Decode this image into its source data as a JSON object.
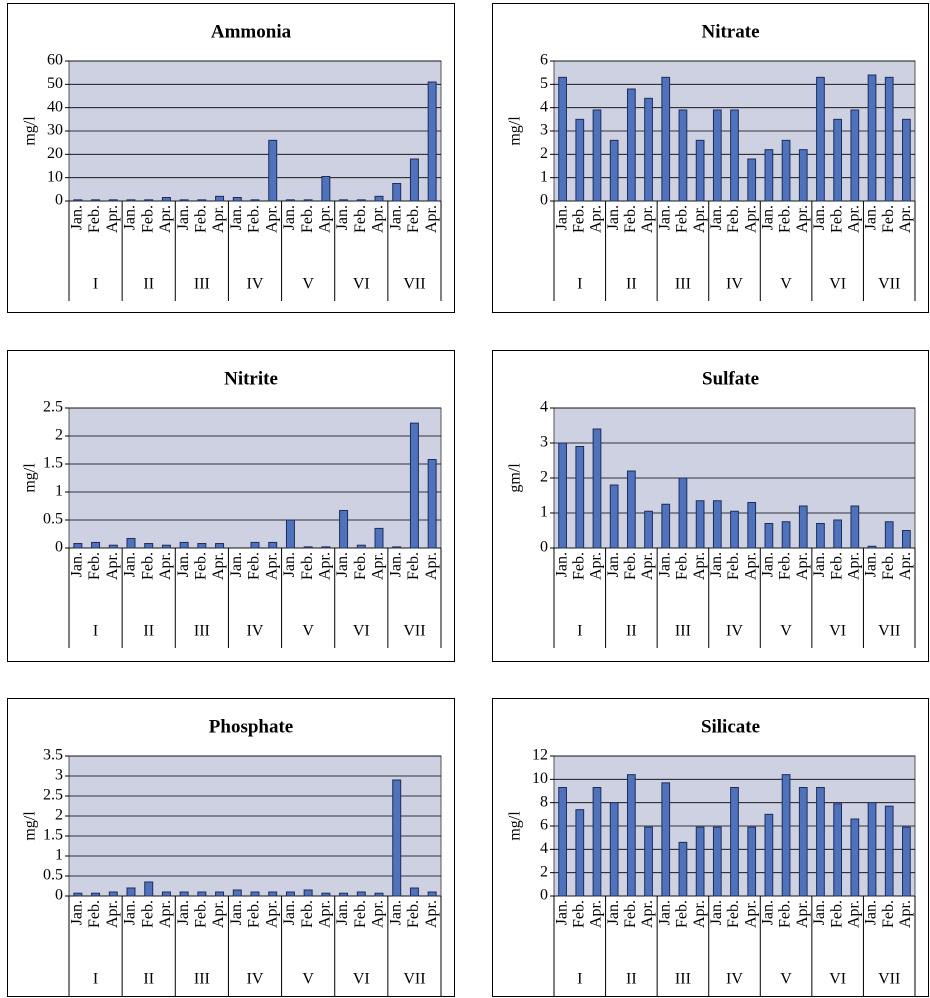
{
  "chart_data": [
    {
      "type": "bar",
      "title": "Ammonia",
      "ylabel": "mg/l",
      "categories": [
        "Jan.",
        "Feb.",
        "Apr.",
        "Jan.",
        "Feb.",
        "Apr.",
        "Jan.",
        "Feb.",
        "Apr.",
        "Jan.",
        "Feb.",
        "Apr.",
        "Jan.",
        "Feb.",
        "Apr.",
        "Jan.",
        "Feb.",
        "Apr.",
        "Jan.",
        "Feb.",
        "Apr."
      ],
      "groups": [
        "I",
        "II",
        "III",
        "IV",
        "V",
        "VI",
        "VII"
      ],
      "values": [
        0.5,
        0.5,
        0.5,
        0.5,
        0.5,
        1.5,
        0.5,
        0.5,
        2,
        1.5,
        0.5,
        26,
        0.5,
        0.5,
        10.5,
        0.5,
        0.5,
        2,
        7.5,
        18,
        51
      ],
      "color": "#4f72bd",
      "ylim": [
        0,
        60
      ],
      "yticks": [
        0,
        10,
        20,
        30,
        40,
        50,
        60
      ],
      "grid": true
    },
    {
      "type": "bar",
      "title": "Nitrate",
      "ylabel": "mg/l",
      "categories": [
        "Jan.",
        "Feb.",
        "Apr.",
        "Jan.",
        "Feb.",
        "Apr.",
        "Jan.",
        "Feb.",
        "Apr.",
        "Jan.",
        "Feb.",
        "Apr.",
        "Jan.",
        "Feb.",
        "Apr.",
        "Jan.",
        "Feb.",
        "Apr.",
        "Jan.",
        "Feb.",
        "Apr."
      ],
      "groups": [
        "I",
        "II",
        "III",
        "IV",
        "V",
        "VI",
        "VII"
      ],
      "values": [
        5.3,
        3.5,
        3.9,
        2.6,
        4.8,
        4.4,
        5.3,
        3.9,
        2.6,
        3.9,
        3.9,
        1.8,
        2.2,
        2.6,
        2.2,
        5.3,
        3.5,
        3.9,
        5.4,
        5.3,
        3.5
      ],
      "color": "#4f72bd",
      "ylim": [
        0,
        6
      ],
      "yticks": [
        0,
        1,
        2,
        3,
        4,
        5,
        6
      ],
      "grid": true
    },
    {
      "type": "bar",
      "title": "Nitrite",
      "ylabel": "mg/l",
      "categories": [
        "Jan.",
        "Feb.",
        "Apr.",
        "Jan.",
        "Feb.",
        "Apr.",
        "Jan.",
        "Feb.",
        "Apr.",
        "Jan.",
        "Feb.",
        "Apr.",
        "Jan.",
        "Feb.",
        "Apr.",
        "Jan.",
        "Feb.",
        "Apr.",
        "Jan.",
        "Feb.",
        "Apr."
      ],
      "groups": [
        "I",
        "II",
        "III",
        "IV",
        "V",
        "VI",
        "VII"
      ],
      "values": [
        0.08,
        0.1,
        0.05,
        0.17,
        0.08,
        0.05,
        0.1,
        0.08,
        0.08,
        0,
        0.1,
        0.1,
        0.5,
        0.02,
        0.02,
        0.67,
        0.05,
        0.35,
        0.02,
        2.23,
        1.58
      ],
      "color": "#4f72bd",
      "ylim": [
        0,
        2.5
      ],
      "yticks": [
        0,
        0.5,
        1,
        1.5,
        2,
        2.5
      ],
      "grid": true
    },
    {
      "type": "bar",
      "title": "Sulfate",
      "ylabel": "gm/l",
      "categories": [
        "Jan.",
        "Feb.",
        "Apr.",
        "Jan.",
        "Feb.",
        "Apr.",
        "Jan.",
        "Feb.",
        "Apr.",
        "Jan.",
        "Feb.",
        "Apr.",
        "Jan.",
        "Feb.",
        "Apr.",
        "Jan.",
        "Feb.",
        "Apr.",
        "Jan.",
        "Feb.",
        "Apr."
      ],
      "groups": [
        "I",
        "II",
        "III",
        "IV",
        "V",
        "VI",
        "VII"
      ],
      "values": [
        3.0,
        2.9,
        3.4,
        1.8,
        2.2,
        1.05,
        1.25,
        2.0,
        1.35,
        1.35,
        1.05,
        1.3,
        0.7,
        0.75,
        1.2,
        0.7,
        0.8,
        1.2,
        0.05,
        0.75,
        0.5
      ],
      "color": "#4f72bd",
      "ylim": [
        0,
        4
      ],
      "yticks": [
        0,
        1,
        2,
        3,
        4
      ],
      "grid": true
    },
    {
      "type": "bar",
      "title": "Phosphate",
      "ylabel": "mg/l",
      "categories": [
        "Jan.",
        "Feb.",
        "Apr.",
        "Jan.",
        "Feb.",
        "Apr.",
        "Jan.",
        "Feb.",
        "Apr.",
        "Jan.",
        "Feb.",
        "Apr.",
        "Jan.",
        "Feb.",
        "Apr.",
        "Jan.",
        "Feb.",
        "Apr.",
        "Jan.",
        "Feb.",
        "Apr."
      ],
      "groups": [
        "I",
        "II",
        "III",
        "IV",
        "V",
        "VI",
        "VII"
      ],
      "values": [
        0.07,
        0.07,
        0.1,
        0.2,
        0.35,
        0.1,
        0.1,
        0.1,
        0.1,
        0.15,
        0.1,
        0.1,
        0.1,
        0.15,
        0.07,
        0.07,
        0.1,
        0.07,
        2.9,
        0.2,
        0.1
      ],
      "color": "#4f72bd",
      "ylim": [
        0,
        3.5
      ],
      "yticks": [
        0,
        0.5,
        1,
        1.5,
        2,
        2.5,
        3,
        3.5
      ],
      "grid": true
    },
    {
      "type": "bar",
      "title": "Silicate",
      "ylabel": "mg/l",
      "categories": [
        "Jan.",
        "Feb.",
        "Apr.",
        "Jan.",
        "Feb.",
        "Apr.",
        "Jan.",
        "Feb.",
        "Apr.",
        "Jan.",
        "Feb.",
        "Apr.",
        "Jan.",
        "Feb.",
        "Apr.",
        "Jan.",
        "Feb.",
        "Apr.",
        "Jan.",
        "Feb.",
        "Apr."
      ],
      "groups": [
        "I",
        "II",
        "III",
        "IV",
        "V",
        "VI",
        "VII"
      ],
      "values": [
        9.3,
        7.4,
        9.3,
        8.0,
        10.4,
        5.9,
        9.7,
        4.6,
        5.9,
        5.9,
        9.3,
        5.9,
        7.0,
        10.4,
        9.3,
        9.3,
        7.9,
        6.6,
        8.0,
        7.7,
        5.9
      ],
      "color": "#4f72bd",
      "ylim": [
        0,
        12
      ],
      "yticks": [
        0,
        2,
        4,
        6,
        8,
        10,
        12
      ],
      "grid": true
    }
  ]
}
